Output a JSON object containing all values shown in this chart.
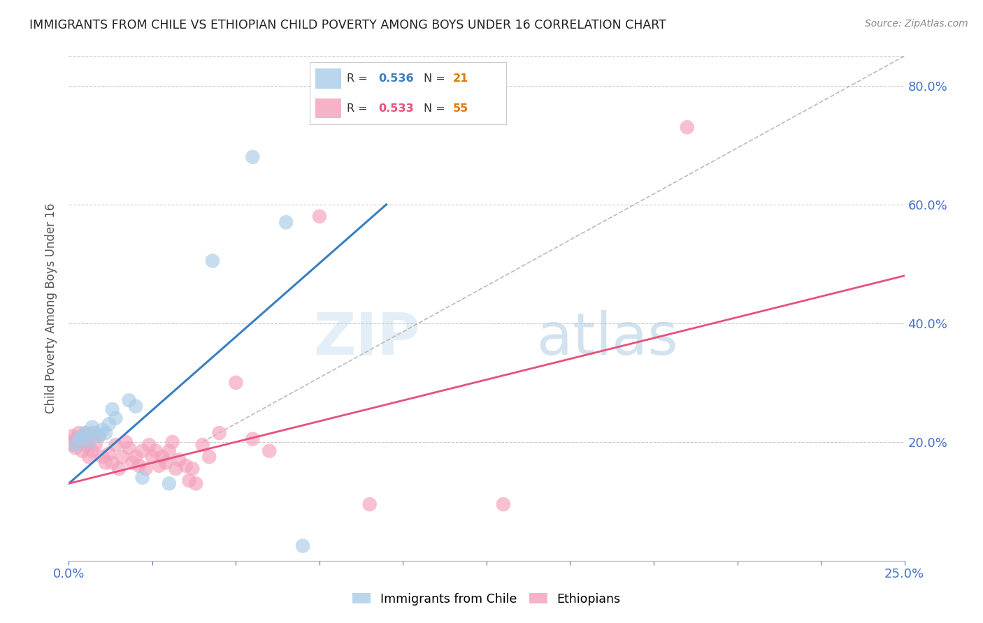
{
  "title": "IMMIGRANTS FROM CHILE VS ETHIOPIAN CHILD POVERTY AMONG BOYS UNDER 16 CORRELATION CHART",
  "source": "Source: ZipAtlas.com",
  "ylabel": "Child Poverty Among Boys Under 16",
  "xlim": [
    0.0,
    0.25
  ],
  "ylim": [
    0.0,
    0.85
  ],
  "chile_R": 0.536,
  "chile_N": 21,
  "ethiopian_R": 0.533,
  "ethiopian_N": 55,
  "chile_color": "#a8cce8",
  "ethiopian_color": "#f4a0bb",
  "chile_line_color": "#3a7fc1",
  "ethiopian_line_color": "#e8507a",
  "diagonal_color": "#bbbbbb",
  "watermark_zip": "ZIP",
  "watermark_atlas": "atlas",
  "chile_line": [
    [
      0.0,
      0.13
    ],
    [
      0.095,
      0.6
    ]
  ],
  "ethiopian_line": [
    [
      0.0,
      0.13
    ],
    [
      0.25,
      0.48
    ]
  ],
  "diagonal_line": [
    [
      0.04,
      0.2
    ],
    [
      0.25,
      0.85
    ]
  ],
  "chile_points": [
    [
      0.002,
      0.195
    ],
    [
      0.003,
      0.205
    ],
    [
      0.004,
      0.21
    ],
    [
      0.005,
      0.215
    ],
    [
      0.006,
      0.2
    ],
    [
      0.007,
      0.225
    ],
    [
      0.008,
      0.215
    ],
    [
      0.009,
      0.21
    ],
    [
      0.01,
      0.22
    ],
    [
      0.011,
      0.215
    ],
    [
      0.012,
      0.23
    ],
    [
      0.013,
      0.255
    ],
    [
      0.014,
      0.24
    ],
    [
      0.018,
      0.27
    ],
    [
      0.02,
      0.26
    ],
    [
      0.022,
      0.14
    ],
    [
      0.03,
      0.13
    ],
    [
      0.043,
      0.505
    ],
    [
      0.055,
      0.68
    ],
    [
      0.065,
      0.57
    ],
    [
      0.07,
      0.025
    ]
  ],
  "ethiopian_points": [
    [
      0.0,
      0.2
    ],
    [
      0.001,
      0.21
    ],
    [
      0.001,
      0.195
    ],
    [
      0.002,
      0.205
    ],
    [
      0.002,
      0.19
    ],
    [
      0.003,
      0.215
    ],
    [
      0.003,
      0.2
    ],
    [
      0.004,
      0.185
    ],
    [
      0.004,
      0.21
    ],
    [
      0.005,
      0.195
    ],
    [
      0.005,
      0.215
    ],
    [
      0.006,
      0.175
    ],
    [
      0.006,
      0.2
    ],
    [
      0.007,
      0.215
    ],
    [
      0.007,
      0.185
    ],
    [
      0.008,
      0.195
    ],
    [
      0.009,
      0.21
    ],
    [
      0.01,
      0.175
    ],
    [
      0.011,
      0.165
    ],
    [
      0.012,
      0.18
    ],
    [
      0.013,
      0.165
    ],
    [
      0.014,
      0.195
    ],
    [
      0.015,
      0.155
    ],
    [
      0.016,
      0.175
    ],
    [
      0.017,
      0.2
    ],
    [
      0.018,
      0.19
    ],
    [
      0.019,
      0.165
    ],
    [
      0.02,
      0.175
    ],
    [
      0.021,
      0.16
    ],
    [
      0.022,
      0.185
    ],
    [
      0.023,
      0.155
    ],
    [
      0.024,
      0.195
    ],
    [
      0.025,
      0.175
    ],
    [
      0.026,
      0.185
    ],
    [
      0.027,
      0.16
    ],
    [
      0.028,
      0.175
    ],
    [
      0.029,
      0.165
    ],
    [
      0.03,
      0.185
    ],
    [
      0.031,
      0.2
    ],
    [
      0.032,
      0.155
    ],
    [
      0.033,
      0.17
    ],
    [
      0.035,
      0.16
    ],
    [
      0.036,
      0.135
    ],
    [
      0.037,
      0.155
    ],
    [
      0.038,
      0.13
    ],
    [
      0.04,
      0.195
    ],
    [
      0.042,
      0.175
    ],
    [
      0.045,
      0.215
    ],
    [
      0.05,
      0.3
    ],
    [
      0.055,
      0.205
    ],
    [
      0.06,
      0.185
    ],
    [
      0.075,
      0.58
    ],
    [
      0.09,
      0.095
    ],
    [
      0.13,
      0.095
    ],
    [
      0.185,
      0.73
    ]
  ]
}
